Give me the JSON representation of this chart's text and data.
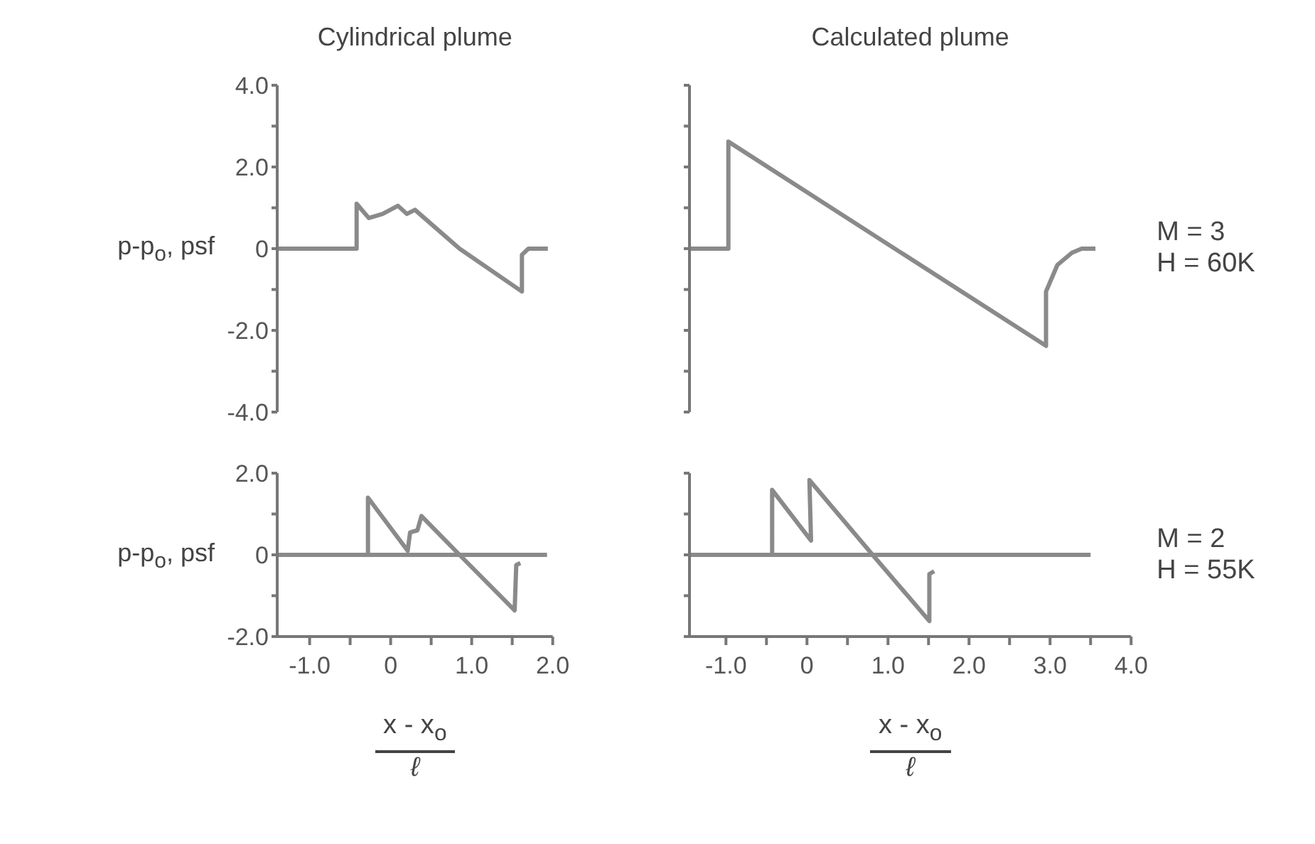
{
  "chart_data": [
    {
      "type": "line",
      "title": "Cylindrical plume",
      "ylabel": "p-p$_{o}$, psf",
      "color": "#8a8a8a",
      "tick_labels": "y",
      "xlim": [
        -1.4,
        2.0
      ],
      "ylim": [
        -4,
        4
      ],
      "yticks": [
        {
          "value": 4,
          "label": "4.0"
        },
        {
          "value": 3,
          "label": null
        },
        {
          "value": 2,
          "label": "2.0"
        },
        {
          "value": 1,
          "label": null
        },
        0,
        {
          "value": -1,
          "label": null
        },
        {
          "value": -2,
          "label": "-2.0"
        },
        {
          "value": -3,
          "label": null
        },
        {
          "value": -4,
          "label": "-4.0"
        }
      ],
      "x": [
        -1.4,
        -0.42,
        -0.42,
        -0.27,
        -0.1,
        0.09,
        0.2,
        0.3,
        0.85,
        1.62,
        1.62,
        1.7,
        1.94
      ],
      "values": [
        0,
        0,
        1.1,
        0.75,
        0.85,
        1.05,
        0.85,
        0.95,
        0,
        -1.05,
        -0.15,
        0,
        0
      ]
    },
    {
      "type": "line",
      "title": "Calculated plume",
      "color": "#8a8a8a",
      "tick_labels": false,
      "xlim": [
        -1.45,
        4.0
      ],
      "ylim": [
        -4,
        4
      ],
      "annotations": [
        "M = 3",
        "H = 60K"
      ],
      "yticks": [
        {
          "value": 4,
          "label": null
        },
        {
          "value": 3,
          "label": null
        },
        {
          "value": 2,
          "label": null
        },
        {
          "value": 1,
          "label": null
        },
        {
          "value": 0,
          "label": null
        },
        {
          "value": -1,
          "label": null
        },
        {
          "value": -2,
          "label": null
        },
        {
          "value": -3,
          "label": null
        },
        {
          "value": -4,
          "label": null
        }
      ],
      "x": [
        -1.44,
        -0.97,
        -0.97,
        2.95,
        2.95,
        3.09,
        3.27,
        3.39,
        3.56
      ],
      "values": [
        0,
        0,
        2.62,
        -2.38,
        -1.05,
        -0.4,
        -0.1,
        0,
        0
      ]
    },
    {
      "type": "line",
      "ylabel": "p-p$_{o}$, psf",
      "xlabel": "x - x$_{o}$\nℓ",
      "xlim": [
        -1.4,
        2.0
      ],
      "ylim": [
        -2,
        2
      ],
      "xticks": [
        {
          "value": -1,
          "label": "-1.0"
        },
        {
          "value": -0.5,
          "label": null
        },
        0,
        {
          "value": 0.5,
          "label": null
        },
        {
          "value": 1,
          "label": "1.0"
        },
        {
          "value": 1.5,
          "label": null
        },
        {
          "value": 2,
          "label": "2.0"
        }
      ],
      "yticks": [
        {
          "value": 2,
          "label": "2.0"
        },
        {
          "value": 1,
          "label": null
        },
        0,
        {
          "value": -1,
          "label": null
        },
        {
          "value": -2,
          "label": "-2.0"
        }
      ],
      "series": [
        {
          "color": "#8a8a8a",
          "x": [
            -1.4,
            -0.28,
            -0.28,
            0.21,
            0.24,
            0.33,
            0.38,
            0.85,
            1.53,
            1.55,
            1.6
          ],
          "values": [
            0,
            0,
            1.4,
            0.1,
            0.55,
            0.6,
            0.95,
            0,
            -1.36,
            -0.25,
            -0.2
          ]
        },
        {
          "color": "#8a8a8a",
          "x": [
            -1.4,
            1.93
          ],
          "values": [
            0,
            0
          ]
        }
      ]
    },
    {
      "type": "line",
      "xlabel": "x - x$_{o}$\nℓ",
      "tick_labels": "x",
      "xlim": [
        -1.45,
        4.0
      ],
      "ylim": [
        -2,
        2
      ],
      "annotations": [
        "M = 2",
        "H = 55K"
      ],
      "xticks": [
        {
          "value": -1,
          "label": "-1.0"
        },
        {
          "value": -0.5,
          "label": null
        },
        0,
        {
          "value": 0.5,
          "label": null
        },
        {
          "value": 1,
          "label": "1.0"
        },
        {
          "value": 1.5,
          "label": null
        },
        {
          "value": 2,
          "label": "2.0"
        },
        {
          "value": 2.5,
          "label": null
        },
        {
          "value": 3,
          "label": "3.0"
        },
        {
          "value": 3.5,
          "label": null
        },
        {
          "value": 4,
          "label": "4.0"
        }
      ],
      "yticks": [
        {
          "value": 2,
          "label": null
        },
        {
          "value": 1,
          "label": null
        },
        {
          "value": 0,
          "label": null
        },
        {
          "value": -1,
          "label": null
        },
        {
          "value": -2,
          "label": null
        }
      ],
      "series": [
        {
          "color": "#8a8a8a",
          "x": [
            -1.44,
            -0.43,
            -0.43,
            0.05,
            0.03,
            0.81,
            1.51,
            1.51,
            1.57
          ],
          "values": [
            0,
            0,
            1.59,
            0.35,
            1.83,
            0,
            -1.62,
            -0.47,
            -0.4
          ]
        },
        {
          "color": "#8a8a8a",
          "x": [
            -1.44,
            3.5
          ],
          "values": [
            0,
            0
          ]
        }
      ]
    }
  ]
}
